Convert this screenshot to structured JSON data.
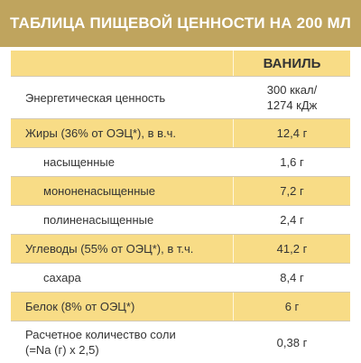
{
  "title": "ТАБЛИЦА ПИЩЕВОЙ ЦЕННОСТИ НА 200 МЛ",
  "column_header": "ВАНИЛЬ",
  "rows": [
    {
      "label": "Энергетическая ценность",
      "value": "300 ккал/\n1274 кДж"
    },
    {
      "label": "Жиры (36% от ОЭЦ*), в в.ч.",
      "value": "12,4 г"
    },
    {
      "label": "насыщенные",
      "value": "1,6 г"
    },
    {
      "label": "мононенасыщенные",
      "value": "7,2 г"
    },
    {
      "label": "полиненасыщенные",
      "value": "2,4 г"
    },
    {
      "label": "Углеводы (55% от ОЭЦ*), в т.ч.",
      "value": "41,2 г"
    },
    {
      "label": "сахара",
      "value": "8,4 г"
    },
    {
      "label": "Белок (8% от ОЭЦ*)",
      "value": "6 г"
    },
    {
      "label": "Расчетное количество соли\n(=Na (г) x 2,5)",
      "value": "0,38 г"
    }
  ],
  "colors": {
    "header": "#bfa45e",
    "row_shade": "#f8dc86"
  }
}
